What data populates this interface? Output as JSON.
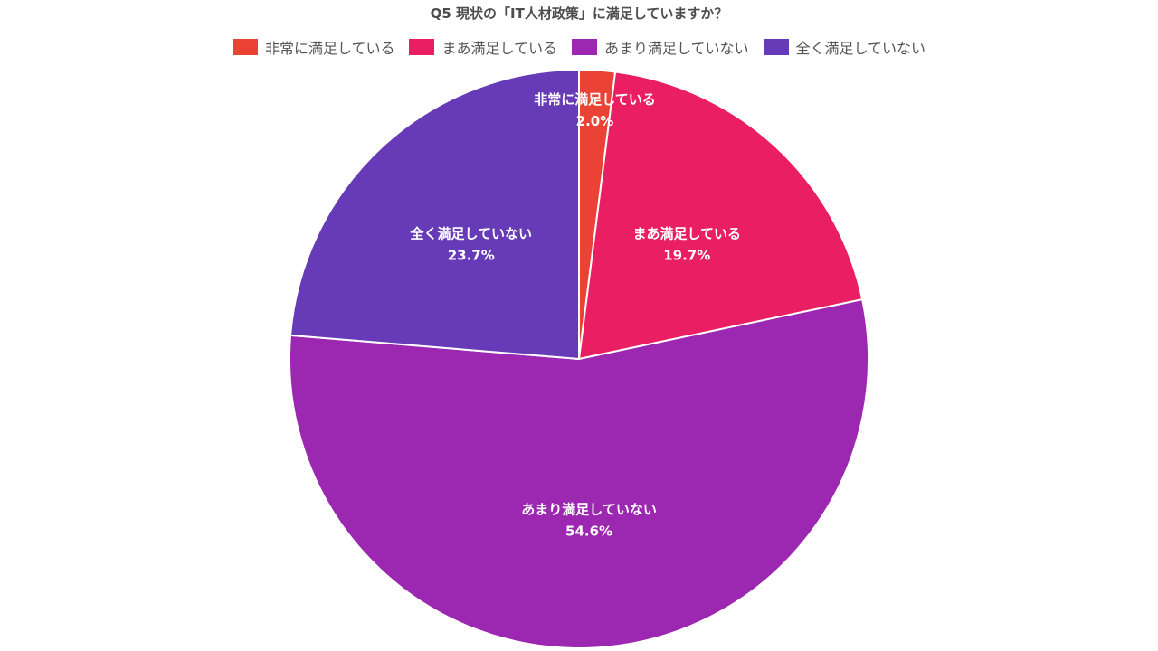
{
  "chart_data": {
    "type": "pie",
    "title": "Q5 現状の「IT人材政策」に満足していますか？",
    "categories": [
      "非常に満足している",
      "まあ満足している",
      "あまり満足していない",
      "全く満足していない"
    ],
    "values": [
      2.0,
      19.7,
      54.6,
      23.7
    ],
    "value_labels": [
      "2.0%",
      "19.7%",
      "54.6%",
      "23.7%"
    ],
    "colors": [
      "#ea4335",
      "#e91e63",
      "#9c27b0",
      "#673ab7"
    ],
    "legend_position": "top",
    "start": "12 o'clock, clockwise"
  }
}
